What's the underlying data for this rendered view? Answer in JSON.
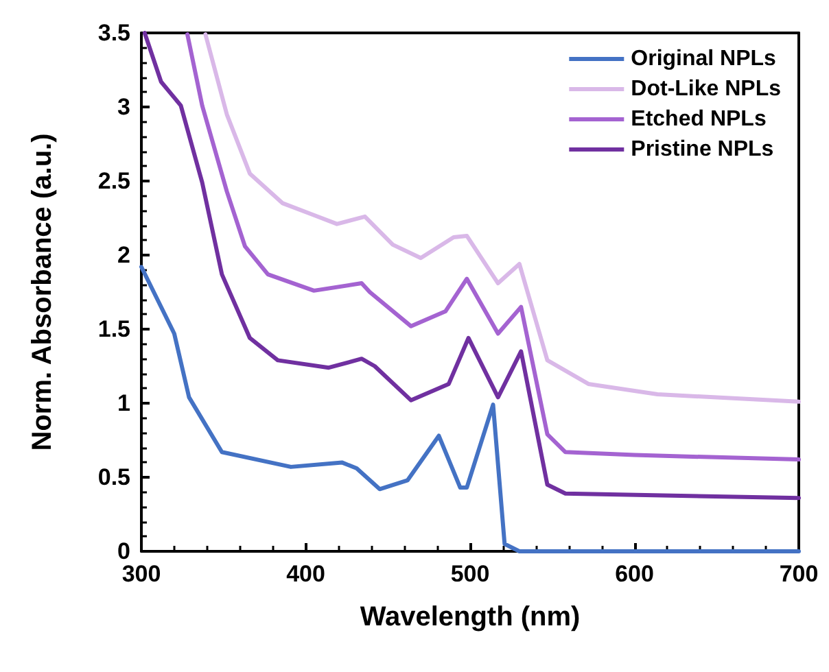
{
  "chart_data": {
    "type": "line",
    "xlabel": "Wavelength (nm)",
    "ylabel": "Norm. Absorbance (a.u.)",
    "xlim": [
      300,
      700
    ],
    "xticks": [
      300,
      400,
      500,
      600,
      700
    ],
    "ylim": [
      0,
      3.5
    ],
    "yticks": [
      0,
      0.5,
      1,
      1.5,
      2,
      2.5,
      3,
      3.5
    ],
    "grid": false,
    "legend": "top right",
    "marker": "none",
    "line_style": "solid",
    "series": [
      {
        "name": "Original NPLs",
        "color": "#4472c4",
        "x": [
          300,
          320,
          329,
          349,
          391,
          422,
          431,
          445,
          462,
          481,
          494,
          498,
          514,
          521,
          530,
          600,
          700
        ],
        "values": [
          1.92,
          1.47,
          1.04,
          0.67,
          0.57,
          0.6,
          0.56,
          0.42,
          0.48,
          0.78,
          0.43,
          0.43,
          0.99,
          0.05,
          0,
          0,
          0
        ]
      },
      {
        "name": "Dot-Like NPLs",
        "color": "#d9b8e8",
        "x": [
          339,
          352,
          366,
          386,
          405,
          419,
          436,
          453,
          470,
          490,
          498,
          517,
          530,
          547,
          572,
          614,
          700
        ],
        "values": [
          3.49,
          2.95,
          2.55,
          2.35,
          2.27,
          2.21,
          2.26,
          2.07,
          1.98,
          2.12,
          2.13,
          1.81,
          1.94,
          1.29,
          1.13,
          1.06,
          1.01
        ]
      },
      {
        "name": "Etched NPLs",
        "color": "#a463d1",
        "x": [
          328,
          337,
          352,
          363,
          377,
          405,
          434,
          439,
          464,
          485,
          498,
          517,
          531,
          547,
          558,
          600,
          700
        ],
        "values": [
          3.49,
          3.01,
          2.43,
          2.06,
          1.87,
          1.76,
          1.81,
          1.75,
          1.52,
          1.62,
          1.84,
          1.47,
          1.65,
          0.79,
          0.67,
          0.65,
          0.62
        ]
      },
      {
        "name": "Pristine NPLs",
        "color": "#7030a0",
        "x": [
          302,
          312,
          324,
          337,
          349,
          366,
          383,
          414,
          434,
          442,
          464,
          487,
          499,
          517,
          531,
          547,
          558,
          700
        ],
        "values": [
          3.5,
          3.17,
          3.01,
          2.49,
          1.87,
          1.44,
          1.29,
          1.24,
          1.3,
          1.25,
          1.02,
          1.13,
          1.44,
          1.04,
          1.35,
          0.45,
          0.39,
          0.36
        ]
      }
    ]
  }
}
